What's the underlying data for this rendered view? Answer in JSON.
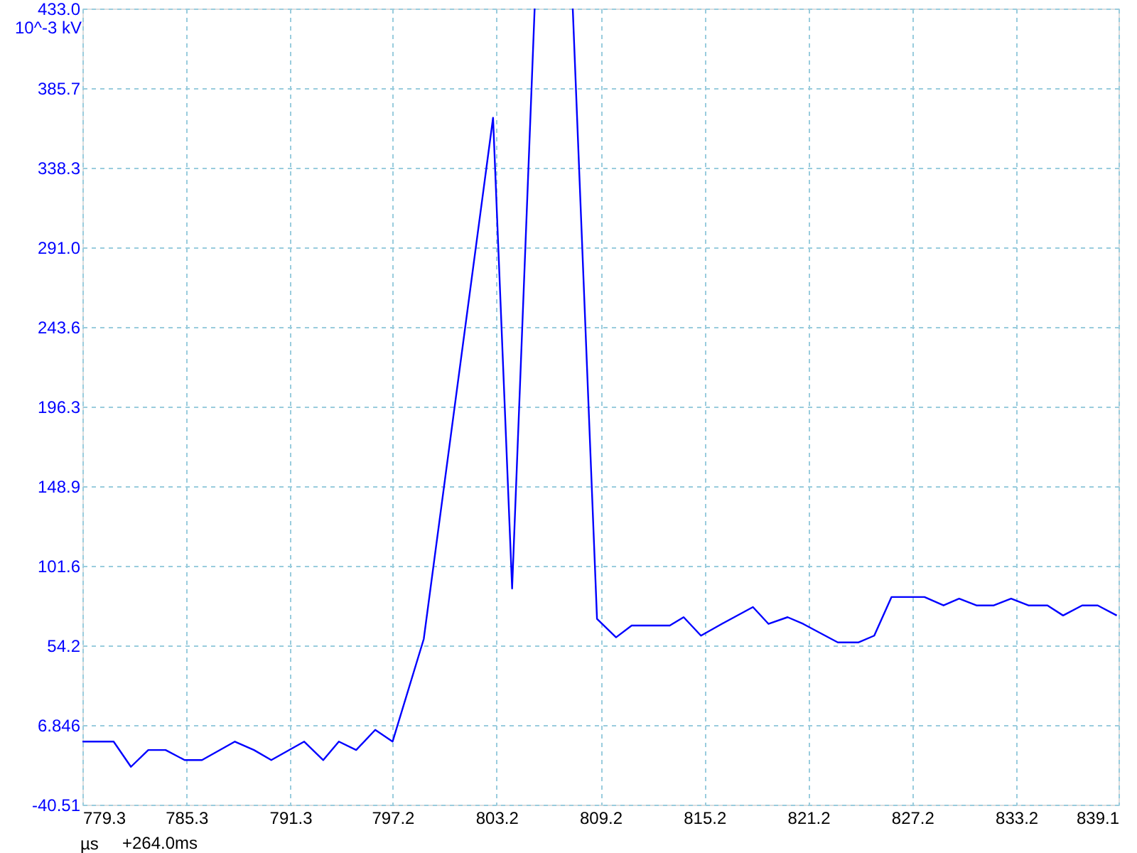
{
  "chart_data": {
    "type": "line",
    "xlabel": "µs",
    "ylabel": "10^-3 kV",
    "annotations": [
      "+264.0ms"
    ],
    "xlim": [
      779.3,
      839.1
    ],
    "xticks": [
      779.3,
      785.3,
      791.3,
      797.2,
      803.2,
      809.2,
      815.2,
      821.2,
      827.2,
      833.2,
      839.1
    ],
    "ylim": [
      -40.51,
      433.0
    ],
    "yticks": [
      {
        "value": -40.51,
        "label": "-40.51"
      },
      {
        "value": 6.846,
        "label": "6.846"
      },
      {
        "value": 54.2,
        "label": "54.2"
      },
      {
        "value": 101.6,
        "label": "101.6"
      },
      {
        "value": 148.9,
        "label": "148.9"
      },
      {
        "value": 196.3,
        "label": "196.3"
      },
      {
        "value": 243.6,
        "label": "243.6"
      },
      {
        "value": 291.0,
        "label": "291.0"
      },
      {
        "value": 338.3,
        "label": "338.3"
      },
      {
        "value": 385.7,
        "label": "385.7"
      },
      {
        "value": 433.0,
        "label": "433.0"
      }
    ],
    "grid": true,
    "marker": "none",
    "line_style": "solid",
    "series": [
      {
        "color": "#0000ff",
        "x": [
          779.3,
          781.1,
          782.1,
          783.1,
          784.1,
          785.2,
          786.2,
          788.1,
          789.2,
          790.2,
          792.1,
          793.2,
          794.1,
          795.1,
          796.2,
          797.2,
          799.0,
          803.0,
          804.1,
          805.4,
          806.5,
          807.6,
          809.0,
          810.1,
          811.0,
          813.2,
          814.0,
          815.0,
          816.2,
          818.0,
          818.9,
          820.0,
          820.9,
          822.9,
          824.1,
          825.0,
          826.0,
          827.9,
          829.0,
          829.9,
          830.9,
          831.9,
          832.9,
          833.9,
          835.0,
          835.9,
          837.0,
          837.9,
          839.0
        ],
        "values": [
          -3,
          -3,
          -18,
          -8,
          -8,
          -14,
          -14,
          -3,
          -8,
          -14,
          -3,
          -14,
          -3,
          -8,
          4,
          -3,
          58,
          368,
          88,
          433,
          null,
          433,
          70,
          59,
          66,
          66,
          71,
          60,
          67,
          77,
          67,
          71,
          67,
          56,
          56,
          60,
          83,
          83,
          78,
          82,
          78,
          78,
          82,
          78,
          78,
          72,
          78,
          78,
          72
        ]
      }
    ]
  }
}
